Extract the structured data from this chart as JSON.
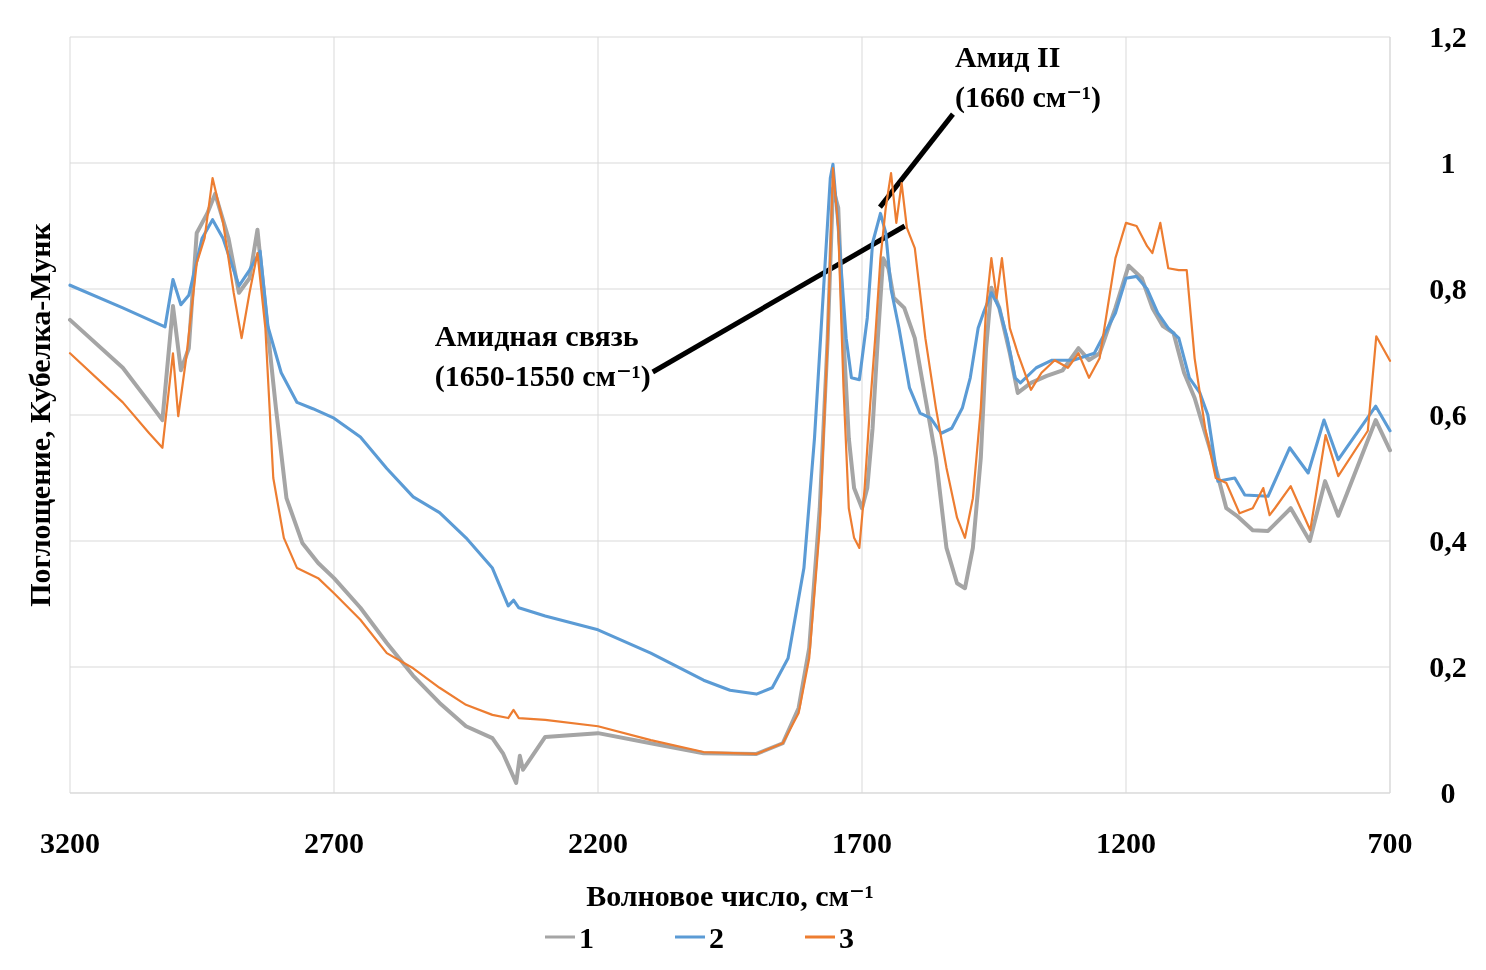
{
  "chart_data": {
    "type": "line",
    "xlabel": "Волновое число, см⁻¹",
    "ylabel": "Поглощение, Кубелка-Мунк",
    "xlim": [
      3200,
      700
    ],
    "xticks": [
      3200,
      2700,
      2200,
      1700,
      1200,
      700
    ],
    "ylim": [
      0,
      1.2
    ],
    "yticks": [
      0,
      {
        "value": 0.2,
        "label": "0,2"
      },
      {
        "value": 0.4,
        "label": "0,4"
      },
      {
        "value": 0.6,
        "label": "0,6"
      },
      {
        "value": 0.8,
        "label": "0,8"
      },
      1,
      {
        "value": 1.2,
        "label": "1,2"
      }
    ],
    "grid": true,
    "legend": "bottom",
    "marker": "none",
    "line_style": "solid",
    "annotations": [
      {
        "text": "Амид II\n(1660 см⁻¹)",
        "x": 1666,
        "y": 0.93
      },
      {
        "text": "Амидная связь\n(1650-1550 см⁻¹)",
        "x": 1619,
        "y": 0.9
      }
    ],
    "series": [
      {
        "name": "1",
        "color": "#a5a5a5",
        "x": [
          3200,
          3100,
          3050,
          3025,
          3005,
          2990,
          2975,
          2960,
          2940,
          2925,
          2900,
          2880,
          2860,
          2845,
          2830,
          2810,
          2790,
          2760,
          2730,
          2700,
          2650,
          2600,
          2550,
          2500,
          2450,
          2400,
          2380,
          2355,
          2348,
          2342,
          2300,
          2200,
          2100,
          2000,
          1900,
          1850,
          1820,
          1800,
          1780,
          1765,
          1755,
          1745,
          1735,
          1725,
          1715,
          1700,
          1690,
          1680,
          1670,
          1660,
          1650,
          1640,
          1620,
          1600,
          1580,
          1560,
          1540,
          1520,
          1505,
          1490,
          1475,
          1465,
          1455,
          1440,
          1420,
          1405,
          1380,
          1350,
          1320,
          1290,
          1270,
          1250,
          1220,
          1195,
          1170,
          1150,
          1130,
          1110,
          1090,
          1070,
          1050,
          1030,
          1010,
          990,
          960,
          931,
          888,
          852,
          823,
          798,
          727,
          700
        ],
        "values": [
          0.751,
          0.675,
          0.62,
          0.592,
          0.773,
          0.671,
          0.706,
          0.889,
          0.92,
          0.951,
          0.881,
          0.794,
          0.817,
          0.894,
          0.77,
          0.611,
          0.468,
          0.397,
          0.365,
          0.341,
          0.294,
          0.238,
          0.186,
          0.143,
          0.106,
          0.087,
          0.063,
          0.016,
          0.059,
          0.037,
          0.089,
          0.095,
          0.079,
          0.063,
          0.062,
          0.079,
          0.135,
          0.23,
          0.452,
          0.722,
          0.96,
          0.929,
          0.722,
          0.563,
          0.484,
          0.452,
          0.484,
          0.579,
          0.722,
          0.849,
          0.833,
          0.786,
          0.77,
          0.722,
          0.627,
          0.532,
          0.389,
          0.333,
          0.325,
          0.389,
          0.532,
          0.706,
          0.802,
          0.77,
          0.698,
          0.635,
          0.651,
          0.662,
          0.671,
          0.706,
          0.687,
          0.698,
          0.77,
          0.837,
          0.817,
          0.77,
          0.741,
          0.73,
          0.667,
          0.627,
          0.571,
          0.516,
          0.452,
          0.44,
          0.417,
          0.416,
          0.452,
          0.4,
          0.495,
          0.44,
          0.592,
          0.544
        ]
      },
      {
        "name": "2",
        "color": "#5b9bd5",
        "x": [
          3200,
          3100,
          3020,
          3005,
          2990,
          2975,
          2950,
          2930,
          2910,
          2880,
          2860,
          2840,
          2825,
          2800,
          2770,
          2740,
          2700,
          2650,
          2600,
          2550,
          2500,
          2450,
          2400,
          2370,
          2360,
          2350,
          2300,
          2200,
          2100,
          2000,
          1950,
          1900,
          1870,
          1840,
          1810,
          1790,
          1775,
          1760,
          1755,
          1745,
          1730,
          1720,
          1705,
          1690,
          1680,
          1665,
          1655,
          1645,
          1630,
          1610,
          1590,
          1570,
          1550,
          1530,
          1510,
          1495,
          1480,
          1470,
          1455,
          1440,
          1425,
          1410,
          1400,
          1370,
          1340,
          1300,
          1260,
          1220,
          1200,
          1180,
          1160,
          1140,
          1120,
          1100,
          1080,
          1060,
          1045,
          1026,
          994,
          975,
          931,
          890,
          855,
          825,
          798,
          727,
          700
        ],
        "values": [
          0.806,
          0.77,
          0.74,
          0.815,
          0.775,
          0.79,
          0.88,
          0.91,
          0.88,
          0.805,
          0.83,
          0.86,
          0.74,
          0.667,
          0.62,
          0.61,
          0.595,
          0.565,
          0.515,
          0.47,
          0.445,
          0.405,
          0.357,
          0.297,
          0.306,
          0.294,
          0.281,
          0.259,
          0.222,
          0.179,
          0.163,
          0.157,
          0.167,
          0.214,
          0.357,
          0.563,
          0.77,
          0.976,
          0.998,
          0.897,
          0.722,
          0.659,
          0.656,
          0.754,
          0.873,
          0.92,
          0.889,
          0.8,
          0.738,
          0.643,
          0.603,
          0.595,
          0.571,
          0.579,
          0.611,
          0.659,
          0.738,
          0.762,
          0.794,
          0.77,
          0.722,
          0.659,
          0.651,
          0.675,
          0.687,
          0.687,
          0.698,
          0.762,
          0.817,
          0.82,
          0.8,
          0.762,
          0.738,
          0.722,
          0.659,
          0.635,
          0.6,
          0.495,
          0.5,
          0.473,
          0.471,
          0.548,
          0.508,
          0.592,
          0.529,
          0.614,
          0.575
        ]
      },
      {
        "name": "3",
        "color": "#ed7d31",
        "x": [
          3200,
          3100,
          3050,
          3025,
          3005,
          2995,
          2980,
          2960,
          2945,
          2930,
          2910,
          2890,
          2875,
          2860,
          2845,
          2830,
          2815,
          2795,
          2770,
          2730,
          2700,
          2650,
          2600,
          2550,
          2500,
          2450,
          2400,
          2370,
          2360,
          2350,
          2300,
          2200,
          2100,
          2000,
          1900,
          1850,
          1820,
          1800,
          1780,
          1765,
          1755,
          1745,
          1735,
          1725,
          1715,
          1705,
          1695,
          1685,
          1675,
          1665,
          1655,
          1645,
          1635,
          1625,
          1615,
          1600,
          1580,
          1560,
          1540,
          1520,
          1505,
          1490,
          1475,
          1465,
          1455,
          1445,
          1435,
          1420,
          1405,
          1380,
          1360,
          1335,
          1310,
          1290,
          1270,
          1250,
          1220,
          1200,
          1180,
          1160,
          1150,
          1135,
          1120,
          1100,
          1085,
          1070,
          1050,
          1030,
          1010,
          985,
          960,
          940,
          928,
          918,
          888,
          851,
          822,
          798,
          742,
          726,
          700
        ],
        "values": [
          0.698,
          0.62,
          0.571,
          0.548,
          0.698,
          0.598,
          0.69,
          0.841,
          0.881,
          0.976,
          0.905,
          0.794,
          0.722,
          0.794,
          0.857,
          0.738,
          0.5,
          0.405,
          0.357,
          0.341,
          0.317,
          0.275,
          0.222,
          0.198,
          0.167,
          0.14,
          0.124,
          0.119,
          0.132,
          0.119,
          0.116,
          0.106,
          0.084,
          0.065,
          0.062,
          0.079,
          0.127,
          0.214,
          0.421,
          0.722,
          0.992,
          0.897,
          0.643,
          0.452,
          0.405,
          0.389,
          0.484,
          0.611,
          0.722,
          0.849,
          0.929,
          0.984,
          0.905,
          0.968,
          0.897,
          0.865,
          0.722,
          0.611,
          0.516,
          0.437,
          0.405,
          0.468,
          0.611,
          0.77,
          0.849,
          0.786,
          0.849,
          0.738,
          0.698,
          0.64,
          0.667,
          0.687,
          0.675,
          0.698,
          0.659,
          0.69,
          0.849,
          0.905,
          0.9,
          0.868,
          0.857,
          0.905,
          0.833,
          0.83,
          0.83,
          0.69,
          0.579,
          0.5,
          0.492,
          0.444,
          0.452,
          0.484,
          0.441,
          0.452,
          0.487,
          0.417,
          0.568,
          0.503,
          0.575,
          0.725,
          0.686
        ]
      }
    ]
  }
}
